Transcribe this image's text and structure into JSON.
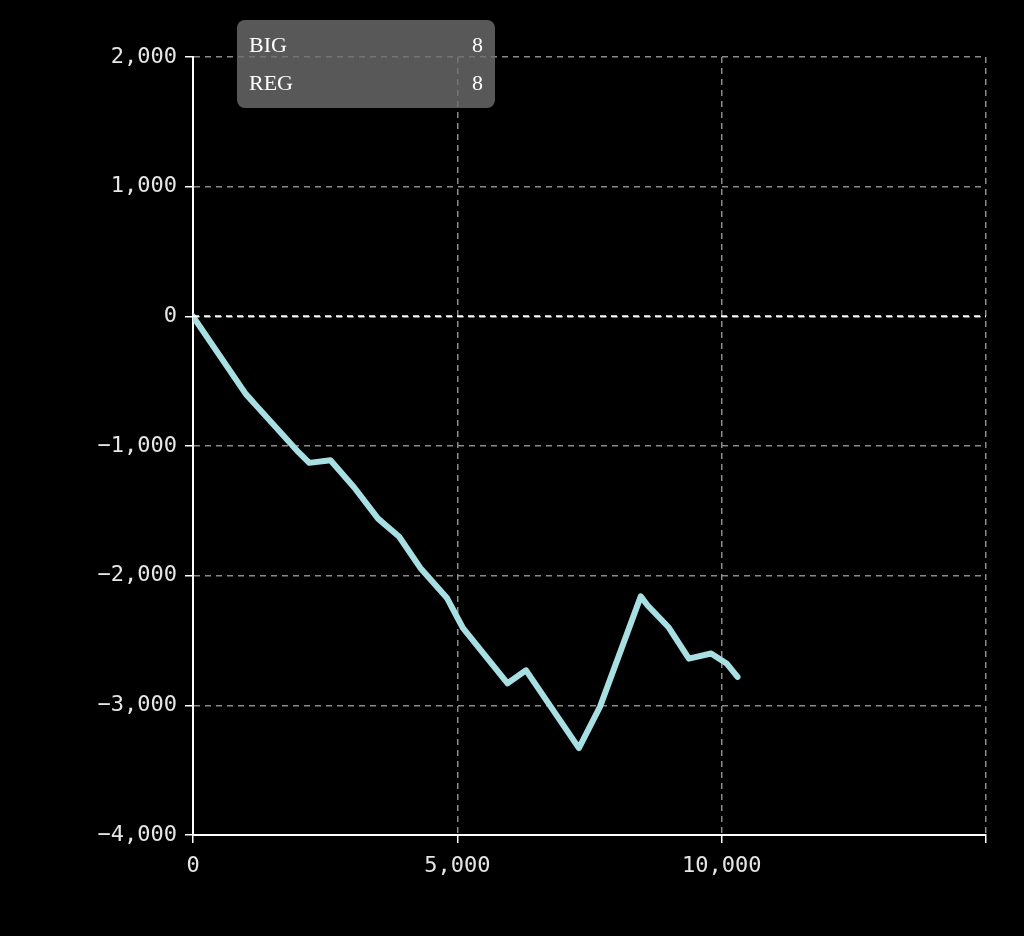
{
  "chart_data": {
    "type": "line",
    "x": [
      0,
      1000,
      2000,
      2200,
      2600,
      3050,
      3500,
      3900,
      4300,
      4800,
      5100,
      5950,
      6300,
      7300,
      7700,
      8470,
      8600,
      9000,
      9380,
      9800,
      10100,
      10300
    ],
    "series": [
      {
        "color": "#a8dfe3",
        "values": [
          0,
          -600,
          -1050,
          -1130,
          -1110,
          -1320,
          -1560,
          -1700,
          -1940,
          -2170,
          -2400,
          -2830,
          -2730,
          -3330,
          -3010,
          -2160,
          -2230,
          -2400,
          -2640,
          -2600,
          -2680,
          -2780
        ]
      }
    ],
    "xlim": [
      0,
      15000
    ],
    "xticks": [
      0,
      {
        "value": 5000,
        "label": "5,000"
      },
      {
        "value": 10000,
        "label": "10,000"
      },
      {
        "value": 15000,
        "label": null
      }
    ],
    "ylim": [
      -4000,
      2000
    ],
    "yticks": [
      {
        "value": -4000,
        "label": "−4,000"
      },
      {
        "value": -3000,
        "label": "−3,000"
      },
      {
        "value": -2000,
        "label": "−2,000"
      },
      {
        "value": -1000,
        "label": "−1,000"
      },
      0,
      {
        "value": 1000,
        "label": "1,000"
      },
      {
        "value": 2000,
        "label": "2,000"
      }
    ],
    "ref_lines": [
      {
        "axis": "y",
        "value": 0,
        "color": "#ffffff",
        "line_style": "dashed"
      }
    ],
    "annotations": [
      "BIG 8",
      "REG 8"
    ],
    "grid": true,
    "marker": "none",
    "line_style": "solid",
    "legend": false
  }
}
